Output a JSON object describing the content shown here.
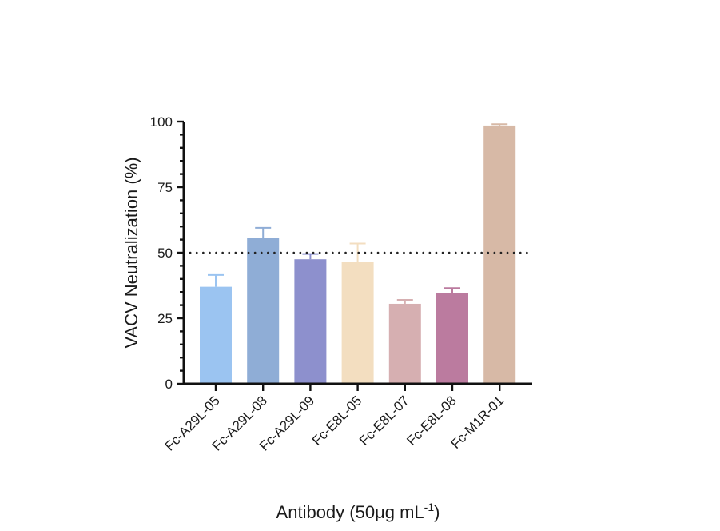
{
  "chart_data": {
    "type": "bar",
    "categories": [
      "Fc-A29L-05",
      "Fc-A29L-08",
      "Fc-A29L-09",
      "Fc-E8L-05",
      "Fc-E8L-07",
      "Fc-E8L-08",
      "Fc-M1R-01"
    ],
    "values": [
      37,
      55.5,
      47.5,
      46.5,
      30.5,
      34.5,
      98.5
    ],
    "error_upper": [
      4.5,
      4,
      2,
      7,
      1.5,
      2,
      0.5
    ],
    "colors": [
      "#9bc4f1",
      "#8fadd6",
      "#8d90cd",
      "#f3dec0",
      "#d6afb1",
      "#bb7b9f",
      "#d7b9a6"
    ],
    "reference_line": 50,
    "ylim": [
      0,
      100
    ],
    "yticks": [
      "0",
      "25",
      "50",
      "75",
      "100"
    ],
    "ylabel": "VACV Neutralization (%)",
    "xlabel": "Antibody (50μg mL",
    "xlabel_superscript": "-1",
    "xlabel_suffix": ")",
    "grid": false
  }
}
